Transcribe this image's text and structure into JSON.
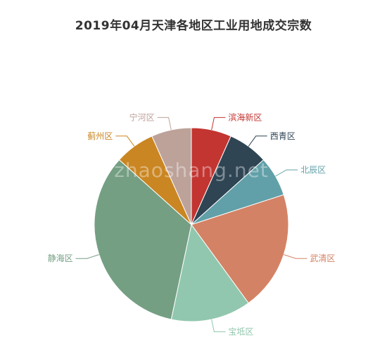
{
  "chart_data": {
    "type": "pie",
    "title": "2019年04月天津各地区工业用地成交宗数",
    "start_angle_deg": 90,
    "direction": "clockwise",
    "legend": "none",
    "slices": [
      {
        "name": "滨海新区",
        "value": 2,
        "color": "#c23531"
      },
      {
        "name": "西青区",
        "value": 2,
        "color": "#2f4554"
      },
      {
        "name": "北辰区",
        "value": 2,
        "color": "#61a0a8"
      },
      {
        "name": "武清区",
        "value": 6,
        "color": "#d48265"
      },
      {
        "name": "宝坻区",
        "value": 4,
        "color": "#91c7ae"
      },
      {
        "name": "静海区",
        "value": 10,
        "color": "#749f83"
      },
      {
        "name": "蓟州区",
        "value": 2,
        "color": "#ca8622"
      },
      {
        "name": "宁河区",
        "value": 2,
        "color": "#bda29a"
      }
    ]
  },
  "watermark": "zhaoshang.net"
}
